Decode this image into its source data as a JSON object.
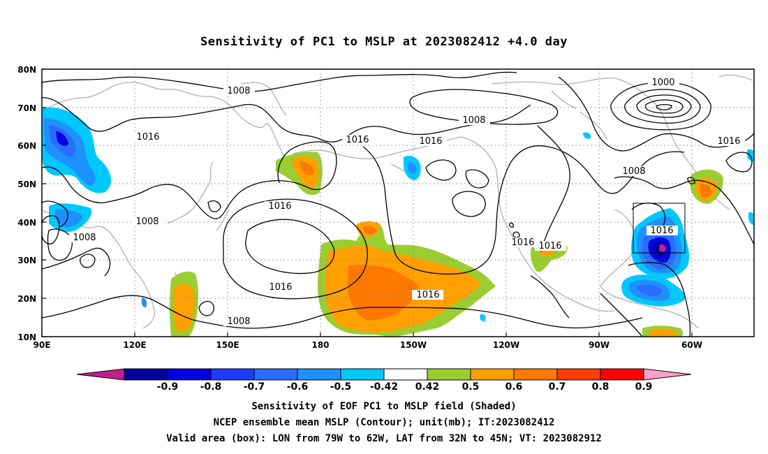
{
  "title": "Sensitivity of PC1 to MSLP at 2023082412 +4.0 day",
  "lat_labels": [
    "80N",
    "70N",
    "60N",
    "50N",
    "40N",
    "30N",
    "20N",
    "10N"
  ],
  "lon_labels": [
    "90E",
    "120E",
    "150E",
    "180",
    "150W",
    "120W",
    "90W",
    "60W"
  ],
  "contour_labels": {
    "c1": "1008",
    "c2": "1016",
    "c3": "1008",
    "c4": "1016",
    "c5": "1016",
    "c6": "1000",
    "c7": "1016",
    "c8": "1008",
    "c9": "1016",
    "c10": "1008",
    "c11": "1008",
    "c12": "1016",
    "c13": "1016",
    "c14": "1008",
    "c15": "1016",
    "c16": "1016"
  },
  "colorbar": {
    "labels": [
      "-0.9",
      "-0.8",
      "-0.7",
      "-0.6",
      "-0.5",
      "-0.42",
      "0.42",
      "0.5",
      "0.6",
      "0.7",
      "0.8",
      "0.9"
    ],
    "colors": [
      "#0000a0",
      "#0000e0",
      "#1e3cff",
      "#2a6cff",
      "#1e90ff",
      "#00c8ff",
      "#ffffff",
      "#9acd32",
      "#ffa000",
      "#ff7800",
      "#ff3c00",
      "#ff0000"
    ],
    "low_end_color": "#c01f8c",
    "high_end_color": "#ff9ecb"
  },
  "captions": {
    "line1": "Sensitivity of EOF PC1 to MSLP field (Shaded)",
    "line2": "NCEP ensemble mean MSLP (Contour); unit(mb); IT:2023082412",
    "line3": "Valid area (box): LON from 79W to 62W, LAT from 32N to 45N; VT: 2023082912"
  }
}
